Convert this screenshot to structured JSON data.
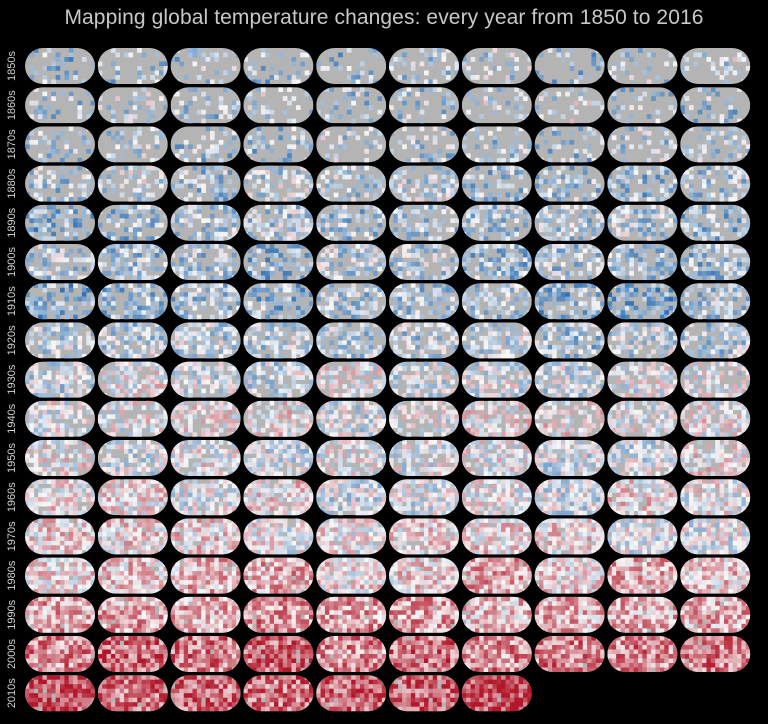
{
  "chart_data": {
    "type": "heatmap",
    "title": "Mapping global temperature changes: every year from 1850 to 2016",
    "row_labels": [
      "1850s",
      "1860s",
      "1870s",
      "1880s",
      "1890s",
      "1900s",
      "1910s",
      "1920s",
      "1930s",
      "1940s",
      "1950s",
      "1960s",
      "1970s",
      "1980s",
      "1990s",
      "2000s",
      "2010s"
    ],
    "columns_per_row": 10,
    "first_year": 1850,
    "last_year": 2016,
    "background_color": "#000000",
    "land_no_data_color": "#b4b4b4",
    "colors": {
      "cold": "#2166ac",
      "neutral": "#f7f7f7",
      "warm": "#b2182b"
    },
    "anomaly_range": [
      -1.0,
      1.0
    ],
    "mean_anomaly_by_decade": [
      -0.3,
      -0.25,
      -0.25,
      -0.3,
      -0.35,
      -0.35,
      -0.4,
      -0.25,
      -0.1,
      0.0,
      -0.05,
      -0.02,
      0.05,
      0.2,
      0.35,
      0.55,
      0.7
    ],
    "data_coverage_by_decade": [
      0.25,
      0.25,
      0.3,
      0.45,
      0.5,
      0.55,
      0.55,
      0.6,
      0.65,
      0.65,
      0.75,
      0.85,
      0.9,
      0.95,
      0.97,
      0.98,
      0.98
    ]
  }
}
